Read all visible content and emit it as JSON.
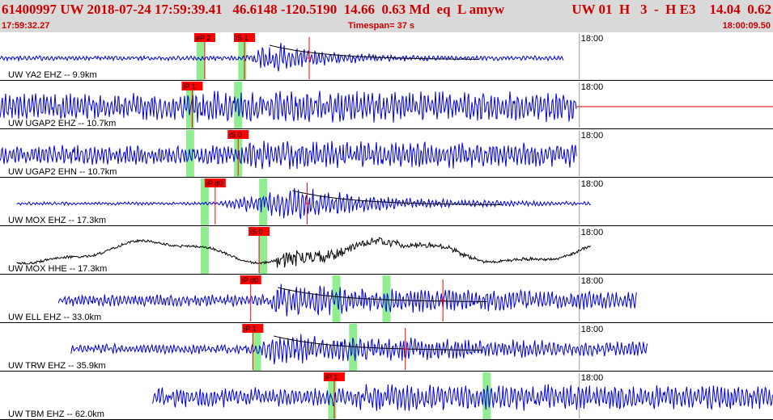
{
  "header": {
    "title_left": "61400997 UW 2018-07-24 17:59:39.41   46.6148 -120.5190  14.66  0.63 Md  eq  L amyw",
    "title_right": "UW 01  H   3  -  H E3    14.04  0.62",
    "start_time": "17:59:32.27",
    "timespan": "Timespan=  37 s",
    "end_time": "18:00:09.50"
  },
  "colors": {
    "header_bg": "#d9d9d9",
    "header_text": "#cc0000",
    "trace_primary": "#0000dd",
    "trace_broadband": "#000000",
    "pick_flag": "#ff0000",
    "phase_window": "#90ee90",
    "coda_line": "#cc0000"
  },
  "tick_label": "18:00",
  "traces": [
    {
      "label": "UW YA2 EHZ -- 9.9km",
      "color": "blue",
      "style": "event",
      "tick_sec": 27.73,
      "start_sec": 0,
      "end_sec": 27.0,
      "onset_sec": 11.7,
      "peak_sec": 12.9,
      "quiet_amp": 0.12,
      "burst_amp": 0.95,
      "decay": 0.45,
      "windows_sec": [
        9.6,
        11.6
      ],
      "picks": [
        {
          "label": "eP 2",
          "sec": 9.8
        },
        {
          "label": "iS 1",
          "sec": 11.7
        }
      ],
      "marker_sec": 14.8
    },
    {
      "label": "UW UGAP2 EHZ -- 10.7km",
      "color": "blue",
      "style": "noise",
      "tick_sec": 27.73,
      "start_sec": 0,
      "end_sec": 27.6,
      "onset_sec": 9.2,
      "peak_sec": 9.5,
      "quiet_amp": 0.7,
      "burst_amp": 0.85,
      "decay": 0.05,
      "windows_sec": [
        9.1,
        11.4
      ],
      "picks": [
        {
          "label": "iP 1",
          "sec": 9.2
        }
      ],
      "marker_sec": null,
      "flat_tail_to_sec": 37.0
    },
    {
      "label": "UW UGAP2 EHN -- 10.7km",
      "color": "blue",
      "style": "noise",
      "tick_sec": 27.73,
      "start_sec": 0,
      "end_sec": 27.6,
      "onset_sec": 11.4,
      "peak_sec": 11.7,
      "quiet_amp": 0.5,
      "burst_amp": 0.75,
      "decay": 0.04,
      "windows_sec": [
        9.1,
        11.4
      ],
      "picks": [
        {
          "label": "iS 0",
          "sec": 11.4
        }
      ],
      "marker_sec": null
    },
    {
      "label": "UW MOX EHZ -- 17.3km",
      "color": "blue",
      "style": "event",
      "tick_sec": 27.73,
      "start_sec": 0.8,
      "end_sec": 28.3,
      "onset_sec": 10.3,
      "peak_sec": 14.0,
      "quiet_amp": 0.08,
      "burst_amp": 0.95,
      "decay": 0.25,
      "windows_sec": [
        9.8,
        12.6
      ],
      "picks": [
        {
          "label": "iP d0",
          "sec": 10.3
        }
      ],
      "marker_sec": 14.7
    },
    {
      "label": "UW MOX HHE -- 17.3km",
      "color": "black",
      "style": "broadband",
      "tick_sec": 27.73,
      "start_sec": 0.8,
      "end_sec": 28.3,
      "onset_sec": 13.2,
      "peak_sec": 14.5,
      "quiet_amp": 0.55,
      "burst_amp": 0.5,
      "decay": 0.2,
      "windows_sec": [
        9.8,
        12.6
      ],
      "picks": [
        {
          "label": "iS 0",
          "sec": 12.4
        }
      ],
      "marker_sec": null
    },
    {
      "label": "UW ELL EHZ -- 33.0km",
      "color": "blue",
      "style": "event",
      "tick_sec": 27.73,
      "start_sec": 2.8,
      "end_sec": 30.5,
      "onset_sec": 12.9,
      "peak_sec": 13.3,
      "quiet_amp": 0.3,
      "burst_amp": 0.85,
      "decay": 0.08,
      "windows_sec": [
        16.1,
        18.5
      ],
      "picks": [
        {
          "label": "iP d0",
          "sec": 12.0
        }
      ],
      "marker_sec": 21.2
    },
    {
      "label": "UW TRW EHZ -- 35.9km",
      "color": "blue",
      "style": "event",
      "tick_sec": 27.73,
      "start_sec": 3.4,
      "end_sec": 31.0,
      "onset_sec": 12.1,
      "peak_sec": 13.1,
      "quiet_amp": 0.25,
      "burst_amp": 0.85,
      "decay": 0.09,
      "windows_sec": [
        12.3,
        16.9
      ],
      "picks": [
        {
          "label": "iP 1",
          "sec": 12.1
        }
      ],
      "marker_sec": 19.4
    },
    {
      "label": "UW TBM EHZ -- 62.0km",
      "color": "blue",
      "style": "noise",
      "tick_sec": 27.73,
      "start_sec": 7.3,
      "end_sec": 37.0,
      "onset_sec": 16.9,
      "peak_sec": 17.2,
      "quiet_amp": 0.5,
      "burst_amp": 0.7,
      "decay": 0.03,
      "windows_sec": [
        15.9,
        23.3
      ],
      "picks": [
        {
          "label": "iP 1",
          "sec": 16.0
        }
      ],
      "marker_sec": null
    }
  ]
}
